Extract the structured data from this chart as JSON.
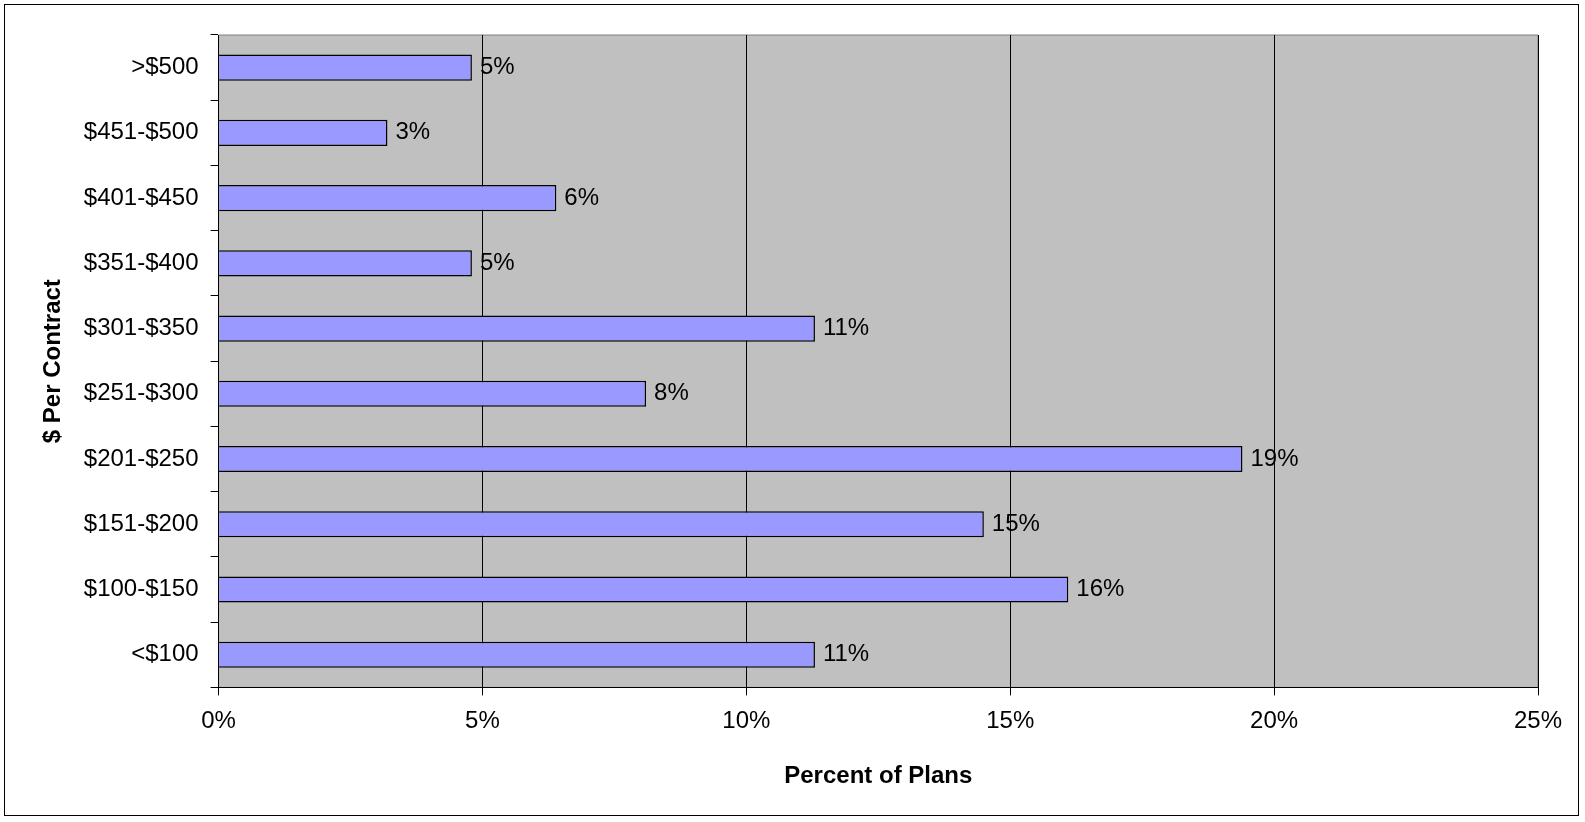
{
  "chart_data": {
    "type": "bar",
    "orientation": "horizontal",
    "categories": [
      ">$500",
      "$451-$500",
      "$401-$450",
      "$351-$400",
      "$301-$350",
      "$251-$300",
      "$201-$250",
      "$151-$200",
      "$100-$150",
      "<$100"
    ],
    "values": [
      4.8,
      3.2,
      6.4,
      4.8,
      11.3,
      8.1,
      19.4,
      14.5,
      16.1,
      11.3
    ],
    "value_labels": [
      "5%",
      "3%",
      "6%",
      "5%",
      "11%",
      "8%",
      "19%",
      "15%",
      "16%",
      "11%"
    ],
    "color": "#9999ff",
    "xlim": [
      0,
      25
    ],
    "xticks": [
      {
        "value": 0,
        "label": "0%"
      },
      {
        "value": 5,
        "label": "5%"
      },
      {
        "value": 10,
        "label": "10%"
      },
      {
        "value": 15,
        "label": "15%"
      },
      {
        "value": 20,
        "label": "20%"
      },
      {
        "value": 25,
        "label": "25%"
      }
    ],
    "xlabel": "Percent of Plans",
    "ylabel": "$ Per Contract",
    "grid": "x"
  }
}
